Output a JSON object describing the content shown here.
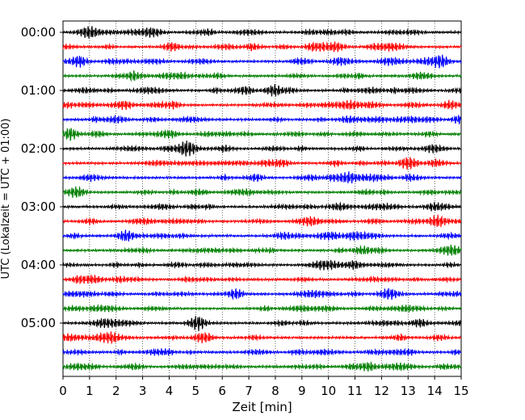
{
  "chart_data": {
    "type": "line",
    "title": "",
    "xlabel": "Zeit  [min]",
    "ylabel": "UTC (Lokalzeit = UTC + 01:00)",
    "xlim": [
      0,
      15
    ],
    "x_ticks": [
      "0",
      "1",
      "2",
      "3",
      "4",
      "5",
      "6",
      "7",
      "8",
      "9",
      "10",
      "11",
      "12",
      "13",
      "14",
      "15"
    ],
    "y_ticks": [
      "00:00",
      "01:00",
      "02:00",
      "03:00",
      "04:00",
      "05:00"
    ],
    "grid": "vertical dotted",
    "trace_interval_minutes": 15,
    "trace_colors": [
      "#000000",
      "#ff0000",
      "#0000ff",
      "#007f00"
    ],
    "series": [
      {
        "start": "00:00",
        "bursts": [
          3.3
        ]
      },
      {
        "start": "00:15",
        "bursts": [
          4.1
        ]
      },
      {
        "start": "00:30",
        "bursts": [
          0.6,
          14.2
        ]
      },
      {
        "start": "00:45",
        "bursts": []
      },
      {
        "start": "01:00",
        "bursts": [
          8.0
        ]
      },
      {
        "start": "01:15",
        "bursts": [
          14.6
        ]
      },
      {
        "start": "01:30",
        "bursts": []
      },
      {
        "start": "01:45",
        "bursts": [
          0.3
        ]
      },
      {
        "start": "02:00",
        "bursts": [
          4.7
        ]
      },
      {
        "start": "02:15",
        "bursts": [
          13.0
        ]
      },
      {
        "start": "02:30",
        "bursts": []
      },
      {
        "start": "02:45",
        "bursts": [
          0.5
        ]
      },
      {
        "start": "03:00",
        "bursts": []
      },
      {
        "start": "03:15",
        "bursts": [
          14.1
        ]
      },
      {
        "start": "03:30",
        "bursts": [
          2.4
        ]
      },
      {
        "start": "03:45",
        "bursts": []
      },
      {
        "start": "04:00",
        "bursts": []
      },
      {
        "start": "04:15",
        "bursts": []
      },
      {
        "start": "04:30",
        "bursts": [
          6.5
        ]
      },
      {
        "start": "04:45",
        "bursts": []
      },
      {
        "start": "05:00",
        "bursts": [
          5.1
        ]
      },
      {
        "start": "05:15",
        "bursts": [
          5.2
        ]
      },
      {
        "start": "05:30",
        "bursts": []
      },
      {
        "start": "05:45",
        "bursts": [
          11.5
        ]
      }
    ]
  }
}
